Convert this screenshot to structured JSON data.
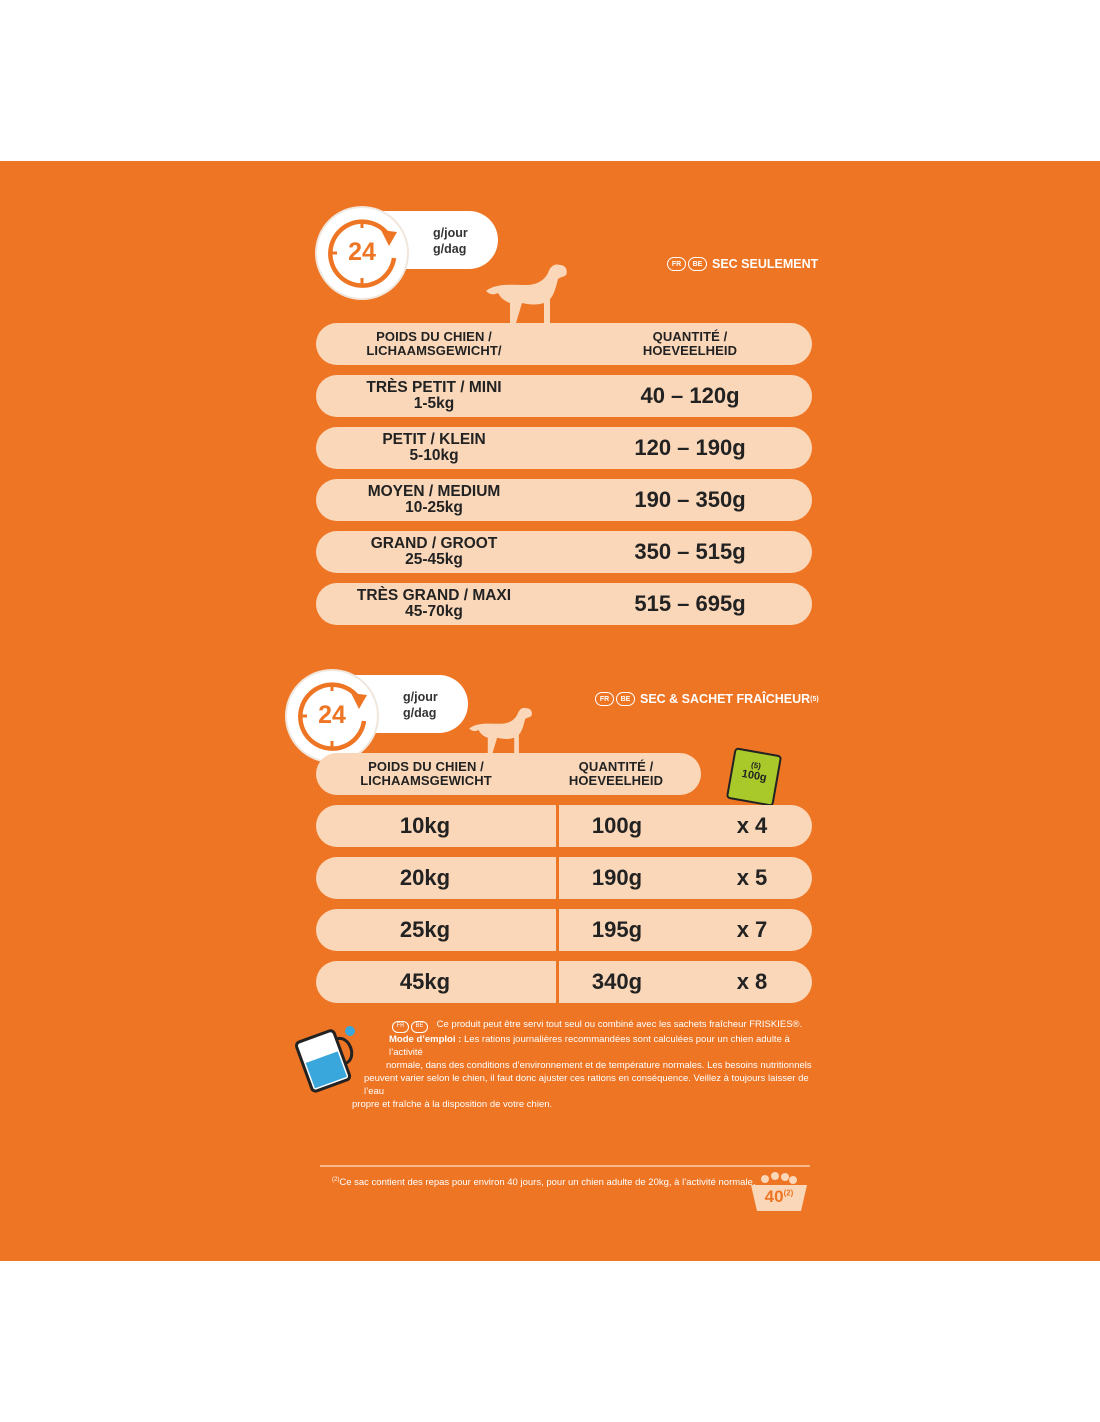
{
  "section1": {
    "badge_number": "24",
    "unit_fr": "g/jour",
    "unit_nl": "g/dag",
    "lang_codes": [
      "FR",
      "BE"
    ],
    "title": "SEC SEULEMENT",
    "header": {
      "weight_line1": "POIDS DU CHIEN /",
      "weight_line2": "LICHAAMSGEWICHT/",
      "qty_line1": "QUANTITÉ /",
      "qty_line2": "HOEVEELHEID"
    },
    "rows": [
      {
        "size": "TRÈS PETIT / MINI",
        "weight": "1-5kg",
        "quantity": "40 – 120g"
      },
      {
        "size": "PETIT / KLEIN",
        "weight": "5-10kg",
        "quantity": "120 – 190g"
      },
      {
        "size": "MOYEN / MEDIUM",
        "weight": "10-25kg",
        "quantity": "190 – 350g"
      },
      {
        "size": "GRAND / GROOT",
        "weight": "25-45kg",
        "quantity": "350 – 515g"
      },
      {
        "size": "TRÈS GRAND / MAXI",
        "weight": "45-70kg",
        "quantity": "515 – 695g"
      }
    ]
  },
  "section2": {
    "badge_number": "24",
    "unit_fr": "g/jour",
    "unit_nl": "g/dag",
    "lang_codes": [
      "FR",
      "BE"
    ],
    "title": "SEC & SACHET FRAÎCHEUR",
    "title_sup": "(5)",
    "header": {
      "weight_line1": "POIDS DU CHIEN /",
      "weight_line2": "LICHAAMSGEWICHT",
      "qty_line1": "QUANTITÉ /",
      "qty_line2": "HOEVEELHEID"
    },
    "pouch_sup": "(5)",
    "pouch_label": "100g",
    "rows": [
      {
        "weight": "10kg",
        "quantity": "100g",
        "pouches": "x 4"
      },
      {
        "weight": "20kg",
        "quantity": "190g",
        "pouches": "x 5"
      },
      {
        "weight": "25kg",
        "quantity": "195g",
        "pouches": "x 7"
      },
      {
        "weight": "45kg",
        "quantity": "340g",
        "pouches": "x 8"
      }
    ]
  },
  "instructions": {
    "lang_codes": [
      "FR",
      "BE"
    ],
    "intro": "Ce produit peut être servi tout seul ou combiné avec les sachets fraîcheur FRISKIES®.",
    "label": "Mode d’emploi :",
    "line1": "Les rations journalières recommandées sont calculées pour un chien adulte à l’activité",
    "line2": "normale, dans des conditions d’environnement et de température normales. Les besoins nutritionnels",
    "line3": "peuvent varier selon le chien, il faut donc ajuster ces rations en conséquence. Veillez à toujours laisser de l’eau",
    "line4": "propre et fraîche à la disposition de votre chien."
  },
  "footnote": {
    "sup": "(2)",
    "text": "Ce sac contient des repas pour environ 40 jours, pour un chien adulte de 20kg, à l’activité normale.",
    "bowl_number": "40",
    "bowl_sup": "(2)"
  },
  "colors": {
    "background": "#ee7524",
    "pill": "#fad7b9",
    "text_dark": "#222222",
    "pouch": "#a9c92a",
    "water": "#3aa7dc"
  }
}
